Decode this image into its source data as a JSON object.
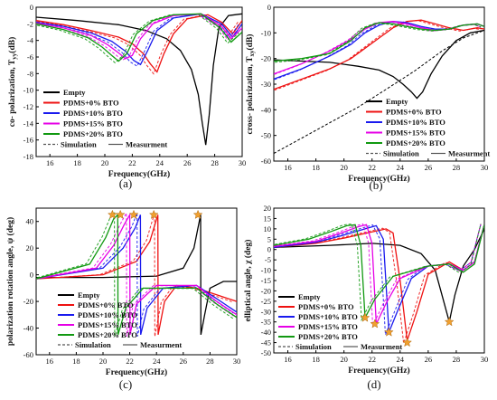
{
  "palette": {
    "empty": "#000000",
    "bto0": "#ee1111",
    "bto10": "#1a1aee",
    "bto15": "#e600e6",
    "bto20": "#119911",
    "sim": "#555555",
    "star": "#f0a030"
  },
  "chart_data": [
    {
      "id": "a",
      "type": "line",
      "caption": "(a)",
      "xlabel": "Frequency(GHz)",
      "ylabel": "co- polarization, T",
      "ylabel_sub": "yy",
      "ylabel_unit": "(dB)",
      "xlim": [
        15,
        30
      ],
      "ylim": [
        -18,
        0
      ],
      "xticks": [
        16,
        18,
        20,
        22,
        24,
        26,
        28,
        30
      ],
      "yticks": [
        0,
        -2,
        -4,
        -6,
        -8,
        -10,
        -12,
        -14,
        -16,
        -18
      ],
      "legend": {
        "position": "lower-left",
        "entries": [
          "Empty",
          "PDMS+0% BTO",
          "PDMS+10% BTO",
          "PDMS+15% BTO",
          "PDMS+20% BTO"
        ],
        "style_entries": [
          "Simulation",
          "Measurment"
        ]
      },
      "series": [
        {
          "name": "Empty",
          "color_key": "empty",
          "x": [
            15,
            18,
            21,
            23,
            24.5,
            25.5,
            26.3,
            26.8,
            27.1,
            27.35,
            27.6,
            27.9,
            28.3,
            29,
            30
          ],
          "y": [
            -1.2,
            -1.6,
            -2.1,
            -2.8,
            -3.8,
            -5.2,
            -7.5,
            -10.5,
            -14,
            -16.6,
            -13,
            -7,
            -2.5,
            -1,
            -0.8
          ]
        },
        {
          "name": "PDMS+0% BTO",
          "color_key": "bto0",
          "x": [
            15,
            17,
            19,
            21,
            22,
            22.8,
            23.3,
            23.8,
            24.3,
            25,
            26,
            27.5,
            28.5,
            29.3,
            30
          ],
          "y": [
            -1.6,
            -2.1,
            -2.8,
            -3.6,
            -4.4,
            -5.6,
            -6.8,
            -7.8,
            -5.6,
            -3.2,
            -1.4,
            -0.9,
            -1.8,
            -3.2,
            -1.6
          ]
        },
        {
          "name": "PDMS+10% BTO",
          "color_key": "bto10",
          "x": [
            15,
            17,
            19,
            20.5,
            21.5,
            22.1,
            22.6,
            23.1,
            23.8,
            25,
            27,
            28.5,
            29.3,
            30
          ],
          "y": [
            -1.8,
            -2.3,
            -3.1,
            -4.1,
            -5.3,
            -6.4,
            -6.9,
            -5.3,
            -2.8,
            -1.3,
            -0.8,
            -2,
            -3.6,
            -2
          ]
        },
        {
          "name": "PDMS+15% BTO",
          "color_key": "bto15",
          "x": [
            15,
            17,
            19,
            20.2,
            21,
            21.5,
            22,
            22.6,
            23.5,
            25,
            27,
            28.5,
            29.2,
            30
          ],
          "y": [
            -1.9,
            -2.5,
            -3.4,
            -4.5,
            -5.5,
            -6.2,
            -5.8,
            -3.8,
            -2,
            -1,
            -0.8,
            -2.3,
            -3.8,
            -2.5
          ]
        },
        {
          "name": "PDMS+20% BTO",
          "color_key": "bto20",
          "x": [
            15,
            17,
            18.8,
            19.8,
            20.5,
            21,
            21.6,
            22.3,
            23.5,
            25,
            27,
            28.4,
            29.2,
            30
          ],
          "y": [
            -2,
            -2.7,
            -3.7,
            -4.8,
            -5.8,
            -6.5,
            -5.6,
            -3.2,
            -1.6,
            -0.9,
            -0.8,
            -2.5,
            -4.2,
            -3
          ]
        }
      ]
    },
    {
      "id": "b",
      "type": "line",
      "caption": "(b)",
      "xlabel": "Frequency(GHz)",
      "ylabel": "cross- polarization, T",
      "ylabel_sub": "xy",
      "ylabel_unit": "(dB)",
      "xlim": [
        15,
        30
      ],
      "ylim": [
        -60,
        0
      ],
      "xticks": [
        16,
        18,
        20,
        22,
        24,
        26,
        28,
        30
      ],
      "yticks": [
        0,
        -10,
        -20,
        -30,
        -40,
        -50,
        -60
      ],
      "legend": {
        "position": "lower-right",
        "entries": [
          "Empty",
          "PDMS+0% BTO",
          "PDMS+10% BTO",
          "PDMS+15% BTO",
          "PDMS+20% BTO"
        ],
        "style_entries": [
          "Simulation",
          "Measurment"
        ]
      },
      "series": [
        {
          "name": "Empty",
          "color_key": "empty",
          "x": [
            15,
            17,
            19,
            21,
            22.5,
            23.5,
            24.2,
            24.8,
            25.2,
            25.6,
            26.2,
            27,
            28,
            29,
            30
          ],
          "y": [
            -20.5,
            -21,
            -21.5,
            -23,
            -24.5,
            -27,
            -30,
            -33,
            -35.5,
            -33,
            -26,
            -19,
            -13,
            -10,
            -9
          ]
        },
        {
          "name": "PDMS+0% BTO",
          "color_key": "bto0",
          "x": [
            15,
            17,
            19,
            20.5,
            21.5,
            22.5,
            23.5,
            24.5,
            25.5,
            26.5,
            27.5,
            28.5,
            29.5,
            30
          ],
          "y": [
            -32,
            -28,
            -24,
            -20,
            -16,
            -12,
            -8,
            -5.5,
            -5,
            -6.5,
            -8,
            -9,
            -8,
            -8.5
          ]
        },
        {
          "name": "PDMS+10% BTO",
          "color_key": "bto10",
          "x": [
            15,
            17,
            19,
            20.5,
            21.5,
            22.5,
            23.5,
            24.5,
            25.5,
            26.5,
            27.5,
            28.5,
            29.5,
            30
          ],
          "y": [
            -28,
            -24,
            -19,
            -14.5,
            -10,
            -7,
            -5.5,
            -6,
            -7.5,
            -8.5,
            -8.5,
            -7,
            -6.5,
            -7.5
          ]
        },
        {
          "name": "PDMS+15% BTO",
          "color_key": "bto15",
          "x": [
            15,
            17,
            19,
            20.5,
            21.5,
            22.5,
            23.5,
            24.5,
            25.5,
            26.5,
            27.5,
            28.5,
            29.5,
            30
          ],
          "y": [
            -26,
            -22,
            -17,
            -12.5,
            -8.5,
            -6,
            -5.5,
            -6.5,
            -8,
            -9,
            -8.5,
            -7,
            -6.5,
            -7.5
          ]
        },
        {
          "name": "PDMS+20% BTO",
          "color_key": "bto20",
          "x": [
            15,
            17,
            19,
            20.5,
            21.5,
            22.5,
            23.5,
            24.5,
            25.5,
            26.5,
            27.5,
            28.5,
            29.5,
            30
          ],
          "y": [
            -21,
            -20,
            -18,
            -13,
            -8,
            -6,
            -6.5,
            -7.5,
            -8.5,
            -9,
            -8.5,
            -7,
            -6.5,
            -7.5
          ]
        },
        {
          "name": "Empty (Simulation)",
          "color_key": "empty",
          "dashed": true,
          "x": [
            15,
            17,
            19,
            21,
            23,
            25,
            27,
            28.5,
            30
          ],
          "y": [
            -57,
            -51,
            -45,
            -39,
            -32,
            -25,
            -17,
            -12,
            -9
          ]
        }
      ]
    },
    {
      "id": "c",
      "type": "line",
      "caption": "(c)",
      "xlabel": "Frequency(GHz)",
      "ylabel": "polarization rotation angle, ψ (deg)",
      "xlim": [
        15,
        30
      ],
      "ylim": [
        -60,
        50
      ],
      "xticks": [
        16,
        18,
        20,
        22,
        24,
        26,
        28,
        30
      ],
      "yticks": [
        40,
        20,
        0,
        -20,
        -40,
        -60
      ],
      "legend": {
        "position": "lower-center",
        "entries": [
          "Empty",
          "PDMS+0% BTO",
          "PDMS+10% BTO",
          "PDMS+15% BTO",
          "PDMS+20% BTO"
        ],
        "style_entries": [
          "Simulation",
          "Measurment"
        ]
      },
      "stars": [
        {
          "x": 20.7,
          "y": 45
        },
        {
          "x": 21.3,
          "y": 45
        },
        {
          "x": 22.3,
          "y": 45
        },
        {
          "x": 23.8,
          "y": 45
        },
        {
          "x": 27.1,
          "y": 45
        }
      ],
      "series": [
        {
          "name": "Empty",
          "color_key": "empty",
          "x": [
            15,
            20,
            24,
            26,
            26.8,
            27.3,
            27.32,
            27.6,
            28,
            29,
            30
          ],
          "y": [
            -2,
            -2,
            -1,
            5,
            20,
            45,
            -45,
            -30,
            -10,
            -5,
            -5
          ]
        },
        {
          "name": "PDMS+0% BTO",
          "color_key": "bto0",
          "x": [
            15,
            20,
            22.5,
            23.5,
            24.1,
            24.12,
            24.6,
            25.5,
            27,
            28.5,
            30
          ],
          "y": [
            -3,
            0,
            10,
            25,
            45,
            -45,
            -20,
            -8,
            -10,
            -15,
            -20
          ]
        },
        {
          "name": "PDMS+10% BTO",
          "color_key": "bto10",
          "x": [
            15,
            20,
            21.5,
            22.4,
            22.8,
            22.82,
            23.3,
            24.5,
            27,
            28.5,
            30
          ],
          "y": [
            -3,
            5,
            20,
            35,
            45,
            -45,
            -25,
            -10,
            -8,
            -18,
            -28
          ]
        },
        {
          "name": "PDMS+15% BTO",
          "color_key": "bto15",
          "x": [
            15,
            19.5,
            20.8,
            21.6,
            22,
            22.02,
            22.5,
            24,
            27,
            28.5,
            30
          ],
          "y": [
            -3,
            5,
            22,
            38,
            45,
            -45,
            -22,
            -8,
            -8,
            -20,
            -30
          ]
        },
        {
          "name": "PDMS+20% BTO",
          "color_key": "bto20",
          "x": [
            15,
            19,
            20.2,
            20.8,
            21.1,
            21.12,
            21.7,
            23,
            27,
            28.5,
            30
          ],
          "y": [
            -3,
            8,
            28,
            42,
            45,
            -45,
            -25,
            -10,
            -10,
            -22,
            -32
          ]
        }
      ]
    },
    {
      "id": "d",
      "type": "line",
      "caption": "(d)",
      "xlabel": "Frequency(GHz)",
      "ylabel": "elliptical angle, χ (deg)",
      "xlim": [
        15,
        30
      ],
      "ylim": [
        -50,
        20
      ],
      "xticks": [
        16,
        18,
        20,
        22,
        24,
        26,
        28,
        30
      ],
      "yticks": [
        20,
        15,
        10,
        5,
        0,
        -5,
        -10,
        -15,
        -20,
        -25,
        -30,
        -35,
        -40,
        -45,
        -50
      ],
      "legend": {
        "position": "lower-left",
        "entries": [
          "Empty",
          "PDMS+0% BTO",
          "PDMS+10% BTO",
          "PDMS+15% BTO",
          "PDMS+20% BTO"
        ],
        "style_entries": [
          "Simulation",
          "Measurment"
        ]
      },
      "stars": [
        {
          "x": 21.5,
          "y": -33
        },
        {
          "x": 22.2,
          "y": -36
        },
        {
          "x": 23.2,
          "y": -40
        },
        {
          "x": 24.5,
          "y": -45
        },
        {
          "x": 27.5,
          "y": -35
        }
      ],
      "series": [
        {
          "name": "Empty",
          "color_key": "empty",
          "x": [
            15,
            19,
            22,
            24,
            25.5,
            26.5,
            27.1,
            27.5,
            27.9,
            28.5,
            29.3,
            30
          ],
          "y": [
            1,
            2,
            3,
            2,
            -2,
            -10,
            -25,
            -35,
            -22,
            -8,
            0,
            10
          ]
        },
        {
          "name": "PDMS+0% BTO",
          "color_key": "bto0",
          "x": [
            15,
            18,
            20,
            22,
            23,
            23.5,
            24,
            24.5,
            25.2,
            26,
            27.5,
            28.5,
            29.3,
            30
          ],
          "y": [
            1,
            3,
            5.5,
            8.5,
            10,
            8,
            -15,
            -44,
            -30,
            -12,
            -6,
            -10,
            -6,
            12
          ]
        },
        {
          "name": "PDMS+10% BTO",
          "color_key": "bto10",
          "x": [
            15,
            18,
            20,
            21.5,
            22.3,
            22.8,
            23.2,
            23.8,
            24.8,
            26,
            27.5,
            28.5,
            29.3,
            30
          ],
          "y": [
            1,
            3.5,
            7,
            10,
            11.5,
            5,
            -40,
            -30,
            -14,
            -8,
            -7,
            -10,
            -6,
            12
          ]
        },
        {
          "name": "PDMS+15% BTO",
          "color_key": "bto15",
          "x": [
            15,
            18,
            19.8,
            21,
            21.6,
            22,
            22.3,
            23,
            24,
            26,
            27.5,
            28.5,
            29.3,
            30
          ],
          "y": [
            1.5,
            4,
            8,
            11,
            12,
            3,
            -36,
            -26,
            -14,
            -8,
            -7,
            -10,
            -6,
            12
          ]
        },
        {
          "name": "PDMS+20% BTO",
          "color_key": "bto20",
          "x": [
            15,
            17.5,
            19,
            20.2,
            20.8,
            21.2,
            21.5,
            22.2,
            23.5,
            26,
            27.5,
            28.5,
            29.3,
            30
          ],
          "y": [
            2,
            5,
            8.5,
            11.5,
            12,
            2,
            -33,
            -24,
            -13,
            -8,
            -7,
            -11,
            -7,
            12
          ]
        }
      ]
    }
  ]
}
